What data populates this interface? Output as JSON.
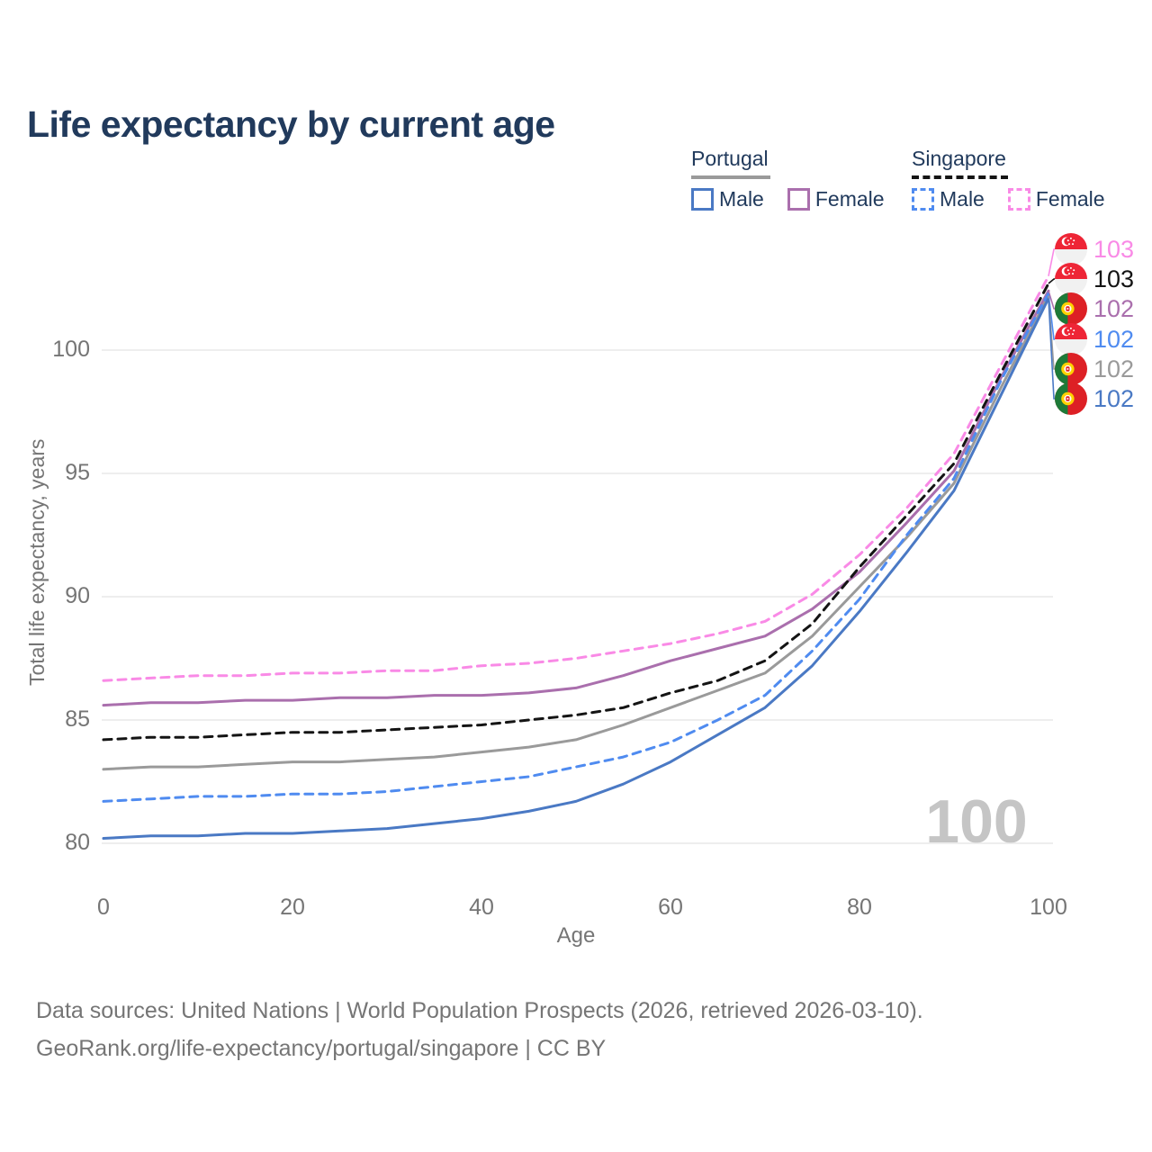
{
  "title": "Life expectancy by current age",
  "legend": {
    "portugal": {
      "label": "Portugal",
      "male": "Male",
      "female": "Female"
    },
    "singapore": {
      "label": "Singapore",
      "male": "Male",
      "female": "Female"
    }
  },
  "axes": {
    "y_title": "Total life expectancy, years",
    "x_title": "Age",
    "y_ticks": [
      "100",
      "95",
      "90",
      "85",
      "80"
    ],
    "x_ticks": [
      "0",
      "20",
      "40",
      "60",
      "80",
      "100"
    ]
  },
  "watermark_age": "100",
  "end_labels": [
    {
      "flag": "singapore",
      "value": "103",
      "color": "#f98ae6",
      "series": "singapore-female"
    },
    {
      "flag": "singapore",
      "value": "103",
      "color": "#141414",
      "series": "singapore-both"
    },
    {
      "flag": "portugal",
      "value": "102",
      "color": "#aa6fad",
      "series": "portugal-female"
    },
    {
      "flag": "singapore",
      "value": "102",
      "color": "#4f8bf0",
      "series": "singapore-male"
    },
    {
      "flag": "portugal",
      "value": "102",
      "color": "#9a9a9a",
      "series": "portugal-both"
    },
    {
      "flag": "portugal",
      "value": "102",
      "color": "#4a79c4",
      "series": "portugal-male"
    }
  ],
  "footer": {
    "line1": "Data sources: United Nations | World Population Prospects (2026, retrieved 2026-03-10).",
    "line2": "GeoRank.org/life-expectancy/portugal/singapore | CC BY"
  },
  "colors": {
    "title_text": "#213a5c",
    "axis_text": "#757575",
    "gridline": "#e9e9e9",
    "watermark": "#c5c5c5",
    "portugal_male": "#4a79c4",
    "portugal_female": "#aa6fad",
    "portugal_both": "#9a9a9a",
    "singapore_male": "#4f8bf0",
    "singapore_female": "#f98ae6",
    "singapore_both": "#141414"
  },
  "chart_data": {
    "type": "line",
    "title": "Life expectancy by current age",
    "xlabel": "Age",
    "ylabel": "Total life expectancy, years",
    "xlim": [
      0,
      100
    ],
    "ylim": [
      78.5,
      104
    ],
    "x_tick_values": [
      0,
      20,
      40,
      60,
      80,
      100
    ],
    "y_tick_values": [
      100,
      95,
      90,
      85,
      80
    ],
    "grid": "horizontal",
    "legend_position": "top-right",
    "x": [
      0,
      5,
      10,
      15,
      20,
      25,
      30,
      35,
      40,
      45,
      50,
      55,
      60,
      65,
      70,
      75,
      80,
      85,
      90,
      95,
      100
    ],
    "series": [
      {
        "key": "singapore-female",
        "name": "Singapore Female",
        "style": "dashed",
        "color": "#f98ae6",
        "values": [
          86.6,
          86.7,
          86.8,
          86.8,
          86.9,
          86.9,
          87.0,
          87.0,
          87.2,
          87.3,
          87.5,
          87.8,
          88.1,
          88.5,
          89.0,
          90.1,
          91.7,
          93.6,
          95.8,
          99.4,
          103.0
        ]
      },
      {
        "key": "portugal-female",
        "name": "Portugal Female",
        "style": "solid",
        "color": "#aa6fad",
        "values": [
          85.6,
          85.7,
          85.7,
          85.8,
          85.8,
          85.9,
          85.9,
          86.0,
          86.0,
          86.1,
          86.3,
          86.8,
          87.4,
          87.9,
          88.4,
          89.5,
          91.0,
          93.0,
          95.1,
          98.9,
          102.4
        ]
      },
      {
        "key": "singapore-both",
        "name": "Singapore",
        "style": "dashed",
        "color": "#141414",
        "values": [
          84.2,
          84.3,
          84.3,
          84.4,
          84.5,
          84.5,
          84.6,
          84.7,
          84.8,
          85.0,
          85.2,
          85.5,
          86.1,
          86.6,
          87.4,
          88.9,
          91.2,
          93.3,
          95.4,
          99.1,
          102.7
        ]
      },
      {
        "key": "portugal-both",
        "name": "Portugal",
        "style": "solid",
        "color": "#9a9a9a",
        "values": [
          83.0,
          83.1,
          83.1,
          83.2,
          83.3,
          83.3,
          83.4,
          83.5,
          83.7,
          83.9,
          84.2,
          84.8,
          85.5,
          86.2,
          86.9,
          88.4,
          90.4,
          92.4,
          94.6,
          98.5,
          102.2
        ]
      },
      {
        "key": "singapore-male",
        "name": "Singapore Male",
        "style": "dashed",
        "color": "#4f8bf0",
        "values": [
          81.7,
          81.8,
          81.9,
          81.9,
          82.0,
          82.0,
          82.1,
          82.3,
          82.5,
          82.7,
          83.1,
          83.5,
          84.1,
          85.0,
          86.0,
          87.8,
          89.9,
          92.5,
          94.8,
          98.8,
          102.3
        ]
      },
      {
        "key": "portugal-male",
        "name": "Portugal Male",
        "style": "solid",
        "color": "#4a79c4",
        "values": [
          80.2,
          80.3,
          80.3,
          80.4,
          80.4,
          80.5,
          80.6,
          80.8,
          81.0,
          81.3,
          81.7,
          82.4,
          83.3,
          84.4,
          85.5,
          87.2,
          89.4,
          91.8,
          94.3,
          98.2,
          102.1
        ]
      }
    ]
  }
}
